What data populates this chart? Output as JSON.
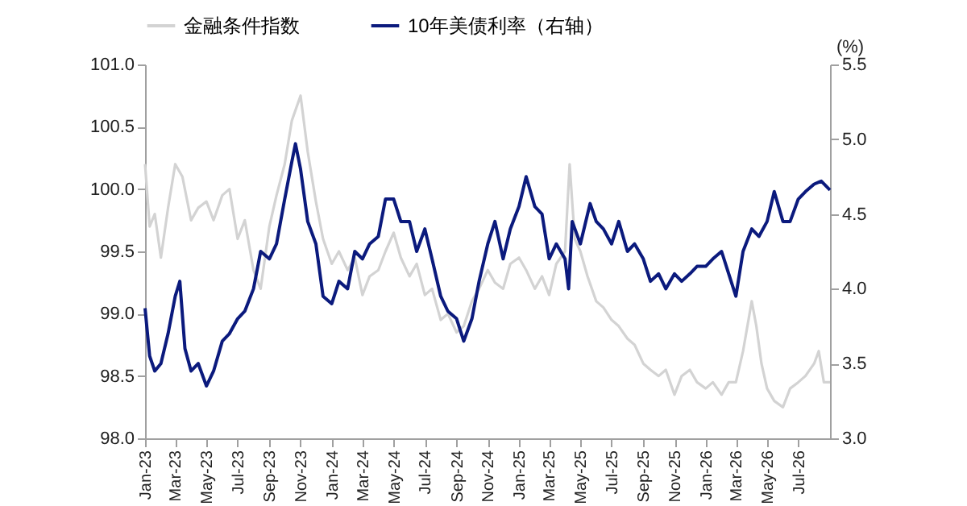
{
  "chart_data": {
    "type": "line",
    "y2label": "(%)",
    "legend": "top",
    "grid": false,
    "line_style": "solid",
    "marker": "none",
    "xlim": [
      "2023-01-01",
      "2026-09-01"
    ],
    "xticks": [
      {
        "value": "2023-01",
        "label": "Jan-23"
      },
      {
        "value": "2023-03",
        "label": "Mar-23"
      },
      {
        "value": "2023-05",
        "label": "May-23"
      },
      {
        "value": "2023-07",
        "label": "Jul-23"
      },
      {
        "value": "2023-09",
        "label": "Sep-23"
      },
      {
        "value": "2023-11",
        "label": "Nov-23"
      },
      {
        "value": "2024-01",
        "label": "Jan-24"
      },
      {
        "value": "2024-03",
        "label": "Mar-24"
      },
      {
        "value": "2024-05",
        "label": "May-24"
      },
      {
        "value": "2024-07",
        "label": "Jul-24"
      },
      {
        "value": "2024-09",
        "label": "Sep-24"
      },
      {
        "value": "2024-11",
        "label": "Nov-24"
      },
      {
        "value": "2025-01",
        "label": "Jan-25"
      },
      {
        "value": "2025-03",
        "label": "Mar-25"
      },
      {
        "value": "2025-05",
        "label": "May-25"
      },
      {
        "value": "2025-07",
        "label": "Jul-25"
      },
      {
        "value": "2025-09",
        "label": "Sep-25"
      },
      {
        "value": "2025-11",
        "label": "Nov-25"
      },
      {
        "value": "2026-01",
        "label": "Jan-26"
      },
      {
        "value": "2026-03",
        "label": "Mar-26"
      },
      {
        "value": "2026-05",
        "label": "May-26"
      },
      {
        "value": "2026-07",
        "label": "Jul-26"
      }
    ],
    "ylim": [
      98,
      101
    ],
    "yticks": [
      {
        "value": 98,
        "label": "98.0"
      },
      {
        "value": 98.5,
        "label": "98.5"
      },
      {
        "value": 99,
        "label": "99.0"
      },
      {
        "value": 99.5,
        "label": "99.5"
      },
      {
        "value": 100,
        "label": "100.0"
      },
      {
        "value": 100.5,
        "label": "100.5"
      },
      {
        "value": 101,
        "label": "101.0"
      }
    ],
    "y2lim": [
      3,
      5.5
    ],
    "y2ticks": [
      {
        "value": 3,
        "label": "3.0"
      },
      {
        "value": 3.5,
        "label": "3.5"
      },
      {
        "value": 4,
        "label": "4.0"
      },
      {
        "value": 4.5,
        "label": "4.5"
      },
      {
        "value": 5,
        "label": "5.0"
      },
      {
        "value": 5.5,
        "label": "5.5"
      }
    ],
    "series": [
      {
        "name": "金融条件指数",
        "color": "#d3d3d3",
        "x": [
          "2023-01-01",
          "2023-01-10",
          "2023-01-20",
          "2023-02-01",
          "2023-02-15",
          "2023-03-01",
          "2023-03-15",
          "2023-04-01",
          "2023-04-15",
          "2023-05-01",
          "2023-05-15",
          "2023-06-01",
          "2023-06-15",
          "2023-07-01",
          "2023-07-15",
          "2023-08-01",
          "2023-08-15",
          "2023-09-01",
          "2023-09-15",
          "2023-10-01",
          "2023-10-15",
          "2023-11-01",
          "2023-11-15",
          "2023-12-01",
          "2023-12-15",
          "2024-01-01",
          "2024-01-15",
          "2024-02-01",
          "2024-02-15",
          "2024-03-01",
          "2024-03-15",
          "2024-04-01",
          "2024-04-15",
          "2024-05-01",
          "2024-05-15",
          "2024-06-01",
          "2024-06-15",
          "2024-07-01",
          "2024-07-15",
          "2024-08-01",
          "2024-08-15",
          "2024-09-01",
          "2024-09-15",
          "2024-10-01",
          "2024-10-15",
          "2024-11-01",
          "2024-11-15",
          "2024-12-01",
          "2024-12-15",
          "2025-01-01",
          "2025-01-15",
          "2025-02-01",
          "2025-02-15",
          "2025-03-01",
          "2025-03-15",
          "2025-04-01",
          "2025-04-10",
          "2025-04-20",
          "2025-05-01",
          "2025-05-15",
          "2025-06-01",
          "2025-06-15",
          "2025-07-01",
          "2025-07-15",
          "2025-08-01",
          "2025-08-15",
          "2025-09-01",
          "2025-09-15",
          "2025-10-01",
          "2025-10-15",
          "2025-11-01",
          "2025-11-15",
          "2025-12-01",
          "2025-12-15",
          "2026-01-01",
          "2026-01-15",
          "2026-02-01",
          "2026-02-15",
          "2026-03-01",
          "2026-03-15",
          "2026-04-01",
          "2026-04-10",
          "2026-04-20",
          "2026-05-01",
          "2026-05-15",
          "2026-06-01",
          "2026-06-15",
          "2026-07-01",
          "2026-07-15",
          "2026-08-01",
          "2026-08-10",
          "2026-08-20",
          "2026-09-01"
        ],
        "values": [
          100.2,
          99.7,
          99.8,
          99.45,
          99.85,
          100.2,
          100.1,
          99.75,
          99.85,
          99.9,
          99.75,
          99.95,
          100.0,
          99.6,
          99.75,
          99.35,
          99.2,
          99.7,
          99.95,
          100.2,
          100.55,
          100.75,
          100.3,
          99.9,
          99.6,
          99.4,
          99.5,
          99.35,
          99.45,
          99.15,
          99.3,
          99.35,
          99.5,
          99.65,
          99.45,
          99.3,
          99.4,
          99.15,
          99.2,
          98.95,
          99.0,
          98.85,
          98.9,
          99.1,
          99.2,
          99.35,
          99.25,
          99.2,
          99.4,
          99.45,
          99.35,
          99.2,
          99.3,
          99.15,
          99.4,
          99.5,
          100.2,
          99.6,
          99.5,
          99.3,
          99.1,
          99.05,
          98.95,
          98.9,
          98.8,
          98.75,
          98.6,
          98.55,
          98.5,
          98.55,
          98.35,
          98.5,
          98.55,
          98.45,
          98.4,
          98.45,
          98.35,
          98.45,
          98.45,
          98.7,
          99.1,
          98.9,
          98.6,
          98.4,
          98.3,
          98.25,
          98.4,
          98.45,
          98.5,
          98.6,
          98.7,
          98.45,
          98.45
        ]
      },
      {
        "name": "10年美债利率（右轴）",
        "color": "#0b1a7d",
        "axis": "y2",
        "x": [
          "2023-01-01",
          "2023-01-10",
          "2023-01-20",
          "2023-02-01",
          "2023-02-15",
          "2023-03-01",
          "2023-03-10",
          "2023-03-20",
          "2023-04-01",
          "2023-04-15",
          "2023-05-01",
          "2023-05-15",
          "2023-06-01",
          "2023-06-15",
          "2023-07-01",
          "2023-07-15",
          "2023-08-01",
          "2023-08-15",
          "2023-09-01",
          "2023-09-15",
          "2023-10-01",
          "2023-10-15",
          "2023-10-22",
          "2023-11-01",
          "2023-11-15",
          "2023-12-01",
          "2023-12-15",
          "2024-01-01",
          "2024-01-15",
          "2024-02-01",
          "2024-02-15",
          "2024-03-01",
          "2024-03-15",
          "2024-04-01",
          "2024-04-15",
          "2024-05-01",
          "2024-05-15",
          "2024-06-01",
          "2024-06-15",
          "2024-07-01",
          "2024-07-15",
          "2024-08-01",
          "2024-08-15",
          "2024-09-01",
          "2024-09-15",
          "2024-10-01",
          "2024-10-15",
          "2024-11-01",
          "2024-11-15",
          "2024-12-01",
          "2024-12-15",
          "2025-01-01",
          "2025-01-15",
          "2025-02-01",
          "2025-02-15",
          "2025-03-01",
          "2025-03-15",
          "2025-04-01",
          "2025-04-08",
          "2025-04-15",
          "2025-05-01",
          "2025-05-20",
          "2025-06-01",
          "2025-06-15",
          "2025-07-01",
          "2025-07-15",
          "2025-08-01",
          "2025-08-15",
          "2025-09-01",
          "2025-09-15",
          "2025-10-01",
          "2025-10-15",
          "2025-11-01",
          "2025-11-15",
          "2025-12-01",
          "2025-12-15",
          "2026-01-01",
          "2026-01-15",
          "2026-02-01",
          "2026-02-15",
          "2026-03-01",
          "2026-03-15",
          "2026-04-01",
          "2026-04-15",
          "2026-05-01",
          "2026-05-15",
          "2026-06-01",
          "2026-06-15",
          "2026-07-01",
          "2026-07-15",
          "2026-08-01",
          "2026-08-15",
          "2026-09-01"
        ],
        "values": [
          3.87,
          3.55,
          3.45,
          3.5,
          3.7,
          3.95,
          4.05,
          3.6,
          3.45,
          3.5,
          3.35,
          3.45,
          3.65,
          3.7,
          3.8,
          3.85,
          4.0,
          4.25,
          4.2,
          4.3,
          4.6,
          4.85,
          4.97,
          4.8,
          4.45,
          4.3,
          3.95,
          3.9,
          4.05,
          4.0,
          4.25,
          4.2,
          4.3,
          4.35,
          4.6,
          4.6,
          4.45,
          4.45,
          4.25,
          4.4,
          4.2,
          3.95,
          3.85,
          3.8,
          3.65,
          3.8,
          4.05,
          4.3,
          4.45,
          4.2,
          4.4,
          4.55,
          4.75,
          4.55,
          4.5,
          4.2,
          4.3,
          4.2,
          4.0,
          4.45,
          4.3,
          4.57,
          4.45,
          4.4,
          4.3,
          4.45,
          4.25,
          4.3,
          4.2,
          4.05,
          4.1,
          4.0,
          4.1,
          4.05,
          4.1,
          4.15,
          4.15,
          4.2,
          4.25,
          4.1,
          3.95,
          4.25,
          4.4,
          4.35,
          4.45,
          4.65,
          4.45,
          4.45,
          4.6,
          4.65,
          4.7,
          4.72,
          4.66
        ]
      }
    ]
  }
}
